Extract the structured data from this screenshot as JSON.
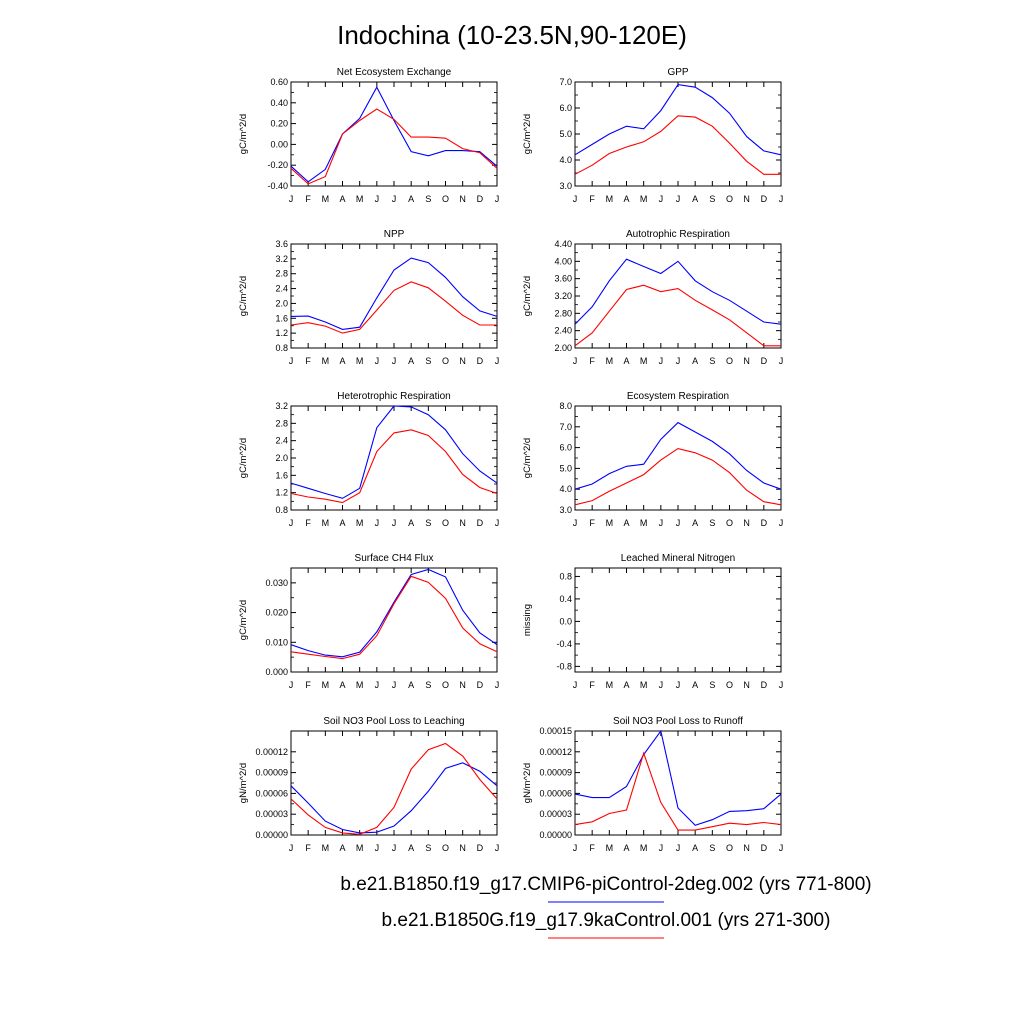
{
  "title": "Indochina (10-23.5N,90-120E)",
  "legend": [
    {
      "label": "b.e21.B1850.f19_g17.CMIP6-piControl-2deg.002 (yrs 771-800)",
      "color": "#0000ff"
    },
    {
      "label": "b.e21.B1850G.f19_g17.9kaControl.001 (yrs 271-300)",
      "color": "#ff0000"
    }
  ],
  "chart_data": [
    {
      "type": "line",
      "title": "Net Ecosystem Exchange",
      "ylabel": "gC/m^2/d",
      "ylim": [
        -0.4,
        0.6
      ],
      "yticks": [
        "-0.40",
        "-0.20",
        "0.00",
        "0.20",
        "0.40",
        "0.60"
      ],
      "x": [
        "J",
        "F",
        "M",
        "A",
        "M",
        "J",
        "J",
        "A",
        "S",
        "O",
        "N",
        "D",
        "J"
      ],
      "series": [
        {
          "color": "#0000ff",
          "values": [
            -0.21,
            -0.36,
            -0.24,
            0.1,
            0.25,
            0.55,
            0.23,
            -0.07,
            -0.11,
            -0.06,
            -0.06,
            -0.07,
            -0.21
          ]
        },
        {
          "color": "#ff0000",
          "values": [
            -0.23,
            -0.38,
            -0.31,
            0.1,
            0.23,
            0.34,
            0.24,
            0.07,
            0.07,
            0.06,
            -0.04,
            -0.08,
            -0.23
          ]
        }
      ]
    },
    {
      "type": "line",
      "title": "GPP",
      "ylabel": "gC/m^2/d",
      "ylim": [
        3.0,
        7.0
      ],
      "yticks": [
        "3.0",
        "4.0",
        "5.0",
        "6.0",
        "7.0"
      ],
      "x": [
        "J",
        "F",
        "M",
        "A",
        "M",
        "J",
        "J",
        "A",
        "S",
        "O",
        "N",
        "D",
        "J"
      ],
      "series": [
        {
          "color": "#0000ff",
          "values": [
            4.2,
            4.6,
            5.0,
            5.3,
            5.2,
            5.9,
            6.9,
            6.8,
            6.4,
            5.8,
            4.9,
            4.35,
            4.2
          ]
        },
        {
          "color": "#ff0000",
          "values": [
            3.45,
            3.8,
            4.25,
            4.5,
            4.7,
            5.1,
            5.7,
            5.65,
            5.3,
            4.65,
            3.95,
            3.45,
            3.45
          ]
        }
      ]
    },
    {
      "type": "line",
      "title": "NPP",
      "ylabel": "gC/m^2/d",
      "ylim": [
        0.8,
        3.6
      ],
      "yticks": [
        "0.8",
        "1.2",
        "1.6",
        "2.0",
        "2.4",
        "2.8",
        "3.2",
        "3.6"
      ],
      "x": [
        "J",
        "F",
        "M",
        "A",
        "M",
        "J",
        "J",
        "A",
        "S",
        "O",
        "N",
        "D",
        "J"
      ],
      "series": [
        {
          "color": "#0000ff",
          "values": [
            1.65,
            1.66,
            1.5,
            1.3,
            1.36,
            2.15,
            2.9,
            3.22,
            3.1,
            2.7,
            2.18,
            1.8,
            1.65
          ]
        },
        {
          "color": "#ff0000",
          "values": [
            1.42,
            1.48,
            1.39,
            1.2,
            1.3,
            1.82,
            2.35,
            2.58,
            2.42,
            2.06,
            1.68,
            1.42,
            1.42
          ]
        }
      ]
    },
    {
      "type": "line",
      "title": "Autotrophic Respiration",
      "ylabel": "gC/m^2/d",
      "ylim": [
        2.0,
        4.4
      ],
      "yticks": [
        "2.00",
        "2.40",
        "2.80",
        "3.20",
        "3.60",
        "4.00",
        "4.40"
      ],
      "x": [
        "J",
        "F",
        "M",
        "A",
        "M",
        "J",
        "J",
        "A",
        "S",
        "O",
        "N",
        "D",
        "J"
      ],
      "series": [
        {
          "color": "#0000ff",
          "values": [
            2.55,
            2.95,
            3.55,
            4.05,
            3.88,
            3.72,
            4.0,
            3.55,
            3.3,
            3.1,
            2.85,
            2.6,
            2.55
          ]
        },
        {
          "color": "#ff0000",
          "values": [
            2.05,
            2.35,
            2.85,
            3.35,
            3.45,
            3.3,
            3.37,
            3.1,
            2.88,
            2.65,
            2.35,
            2.05,
            2.05
          ]
        }
      ]
    },
    {
      "type": "line",
      "title": "Heterotrophic Respiration",
      "ylabel": "gC/m^2/d",
      "ylim": [
        0.8,
        3.2
      ],
      "yticks": [
        "0.8",
        "1.2",
        "1.6",
        "2.0",
        "2.4",
        "2.8",
        "3.2"
      ],
      "x": [
        "J",
        "F",
        "M",
        "A",
        "M",
        "J",
        "J",
        "A",
        "S",
        "O",
        "N",
        "D",
        "J"
      ],
      "series": [
        {
          "color": "#0000ff",
          "values": [
            1.42,
            1.3,
            1.18,
            1.07,
            1.3,
            2.7,
            3.2,
            3.18,
            3.0,
            2.65,
            2.1,
            1.7,
            1.42
          ]
        },
        {
          "color": "#ff0000",
          "values": [
            1.18,
            1.1,
            1.05,
            0.97,
            1.2,
            2.15,
            2.58,
            2.65,
            2.52,
            2.15,
            1.62,
            1.32,
            1.18
          ]
        }
      ]
    },
    {
      "type": "line",
      "title": "Ecosystem Respiration",
      "ylabel": "gC/m^2/d",
      "ylim": [
        3.0,
        8.0
      ],
      "yticks": [
        "3.0",
        "4.0",
        "5.0",
        "6.0",
        "7.0",
        "8.0"
      ],
      "x": [
        "J",
        "F",
        "M",
        "A",
        "M",
        "J",
        "J",
        "A",
        "S",
        "O",
        "N",
        "D",
        "J"
      ],
      "series": [
        {
          "color": "#0000ff",
          "values": [
            4.0,
            4.25,
            4.75,
            5.1,
            5.2,
            6.4,
            7.2,
            6.75,
            6.3,
            5.7,
            4.9,
            4.3,
            4.0
          ]
        },
        {
          "color": "#ff0000",
          "values": [
            3.25,
            3.45,
            3.9,
            4.3,
            4.7,
            5.4,
            5.95,
            5.75,
            5.4,
            4.8,
            3.95,
            3.4,
            3.25
          ]
        }
      ]
    },
    {
      "type": "line",
      "title": "Surface CH4 Flux",
      "ylabel": "gC/m^2/d",
      "ylim": [
        0.0,
        0.035
      ],
      "yticks": [
        "0.000",
        "0.010",
        "0.020",
        "0.030"
      ],
      "x": [
        "J",
        "F",
        "M",
        "A",
        "M",
        "J",
        "J",
        "A",
        "S",
        "O",
        "N",
        "D",
        "J"
      ],
      "series": [
        {
          "color": "#0000ff",
          "values": [
            0.0092,
            0.0072,
            0.0057,
            0.0051,
            0.0067,
            0.0135,
            0.0235,
            0.0328,
            0.0345,
            0.032,
            0.0208,
            0.0132,
            0.0092
          ]
        },
        {
          "color": "#ff0000",
          "values": [
            0.0068,
            0.006,
            0.0052,
            0.0045,
            0.006,
            0.0122,
            0.023,
            0.0322,
            0.0302,
            0.0248,
            0.0148,
            0.0095,
            0.0068
          ]
        }
      ]
    },
    {
      "type": "line",
      "title": "Leached Mineral Nitrogen",
      "ylabel": "missing",
      "ylim": [
        -0.9,
        0.95
      ],
      "yticks": [
        "-0.8",
        "-0.4",
        "0.0",
        "0.4",
        "0.8"
      ],
      "ytickvals": [
        -0.8,
        -0.4,
        0.0,
        0.4,
        0.8
      ],
      "yminor": [
        -0.6,
        -0.2,
        0.2,
        0.6
      ],
      "x": [
        "J",
        "F",
        "M",
        "A",
        "M",
        "J",
        "J",
        "A",
        "S",
        "O",
        "N",
        "D",
        "J"
      ],
      "series": []
    },
    {
      "type": "line",
      "title": "Soil NO3 Pool Loss to Leaching",
      "ylabel": "gN/m^2/d",
      "ylim": [
        0.0,
        0.00015
      ],
      "yticks": [
        "0.00000",
        "0.00003",
        "0.00006",
        "0.00009",
        "0.00012"
      ],
      "ytickvals": [
        0.0,
        3e-05,
        6e-05,
        9e-05,
        0.00012
      ],
      "x": [
        "J",
        "F",
        "M",
        "A",
        "M",
        "J",
        "J",
        "A",
        "S",
        "O",
        "N",
        "D",
        "J"
      ],
      "series": [
        {
          "color": "#0000ff",
          "values": [
            7.1e-05,
            4.6e-05,
            2e-05,
            8e-06,
            3e-06,
            4e-06,
            1.3e-05,
            3.5e-05,
            6.3e-05,
            9.6e-05,
            0.000104,
            9.2e-05,
            7.1e-05
          ]
        },
        {
          "color": "#ff0000",
          "values": [
            5.2e-05,
            2.9e-05,
            1.1e-05,
            3e-06,
            1e-06,
            1.1e-05,
            4e-05,
            9.5e-05,
            0.000123,
            0.000132,
            0.000114,
            8e-05,
            5.2e-05
          ]
        }
      ]
    },
    {
      "type": "line",
      "title": "Soil NO3 Pool Loss to Runoff",
      "ylabel": "gN/m^2/d",
      "ylim": [
        0.0,
        0.00015
      ],
      "yticks": [
        "0.00000",
        "0.00003",
        "0.00006",
        "0.00009",
        "0.00012",
        "0.00015"
      ],
      "ytickvals": [
        0.0,
        3e-05,
        6e-05,
        9e-05,
        0.00012,
        0.00015
      ],
      "x": [
        "J",
        "F",
        "M",
        "A",
        "M",
        "J",
        "J",
        "A",
        "S",
        "O",
        "N",
        "D",
        "J"
      ],
      "series": [
        {
          "color": "#0000ff",
          "values": [
            5.9e-05,
            5.4e-05,
            5.4e-05,
            7e-05,
            0.000116,
            0.00015,
            3.9e-05,
            1.4e-05,
            2.2e-05,
            3.4e-05,
            3.5e-05,
            3.8e-05,
            5.9e-05
          ]
        },
        {
          "color": "#ff0000",
          "values": [
            1.5e-05,
            1.9e-05,
            3.1e-05,
            3.6e-05,
            0.000118,
            4.7e-05,
            7e-06,
            7e-06,
            1.2e-05,
            1.7e-05,
            1.5e-05,
            1.8e-05,
            1.5e-05
          ]
        }
      ]
    }
  ]
}
